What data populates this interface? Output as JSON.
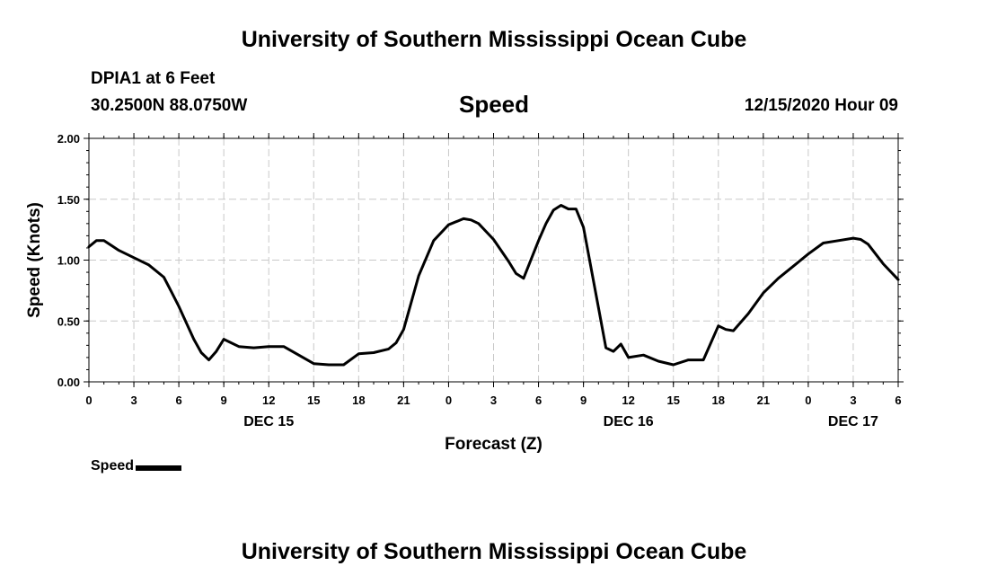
{
  "header": {
    "title": "University of Southern Mississippi Ocean Cube",
    "station": "DPIA1 at 6 Feet",
    "coordinates": "30.2500N 88.0750W",
    "parameter": "Speed",
    "datetime": "12/15/2020 Hour 09"
  },
  "footer": {
    "title": "University of Southern Mississippi Ocean Cube"
  },
  "legend": {
    "label": "Speed",
    "color": "#000000"
  },
  "chart_data": {
    "type": "line",
    "xlabel": "Forecast (Z)",
    "ylabel": "Speed (Knots)",
    "ylim": [
      0,
      2
    ],
    "xlim": [
      0,
      54
    ],
    "yticks": [
      "0.00",
      "0.50",
      "1.00",
      "1.50",
      "2.00"
    ],
    "xticks": [
      "0",
      "3",
      "6",
      "9",
      "12",
      "15",
      "18",
      "21",
      "0",
      "3",
      "6",
      "9",
      "12",
      "15",
      "18",
      "21",
      "0",
      "3",
      "6"
    ],
    "date_labels": [
      {
        "at_hour": 12,
        "label": "DEC 15"
      },
      {
        "at_hour": 36,
        "label": "DEC 16"
      },
      {
        "at_hour": 51,
        "label": "DEC 17"
      }
    ],
    "grid": true,
    "series": [
      {
        "name": "Speed",
        "color": "#000000",
        "x": [
          0,
          0.5,
          1,
          2,
          3,
          4,
          5,
          5.5,
          6,
          7,
          7.5,
          8,
          8.5,
          9,
          10,
          11,
          12,
          13,
          14,
          15,
          16,
          17,
          18,
          19,
          20,
          20.5,
          21,
          22,
          23,
          24,
          25,
          25.5,
          26,
          27,
          28,
          28.5,
          29,
          30,
          30.5,
          31,
          31.5,
          32,
          32.5,
          33,
          34,
          34.5,
          35,
          35.5,
          36,
          37,
          38,
          39,
          40,
          41,
          42,
          42.5,
          43,
          44,
          45,
          46,
          47,
          48,
          49,
          50,
          51,
          51.5,
          52,
          53,
          54
        ],
        "y": [
          1.11,
          1.16,
          1.16,
          1.08,
          1.02,
          0.96,
          0.86,
          0.74,
          0.62,
          0.35,
          0.24,
          0.18,
          0.25,
          0.35,
          0.29,
          0.28,
          0.29,
          0.29,
          0.22,
          0.15,
          0.14,
          0.14,
          0.23,
          0.24,
          0.27,
          0.32,
          0.43,
          0.87,
          1.16,
          1.29,
          1.34,
          1.33,
          1.3,
          1.17,
          0.99,
          0.89,
          0.85,
          1.16,
          1.3,
          1.41,
          1.45,
          1.42,
          1.42,
          1.27,
          0.61,
          0.28,
          0.25,
          0.31,
          0.2,
          0.22,
          0.17,
          0.14,
          0.18,
          0.18,
          0.46,
          0.43,
          0.42,
          0.56,
          0.73,
          0.85,
          0.95,
          1.05,
          1.14,
          1.16,
          1.18,
          1.17,
          1.13,
          0.97,
          0.84
        ]
      }
    ]
  }
}
